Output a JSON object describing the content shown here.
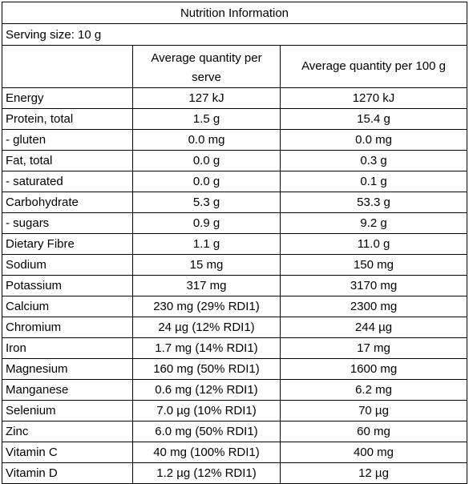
{
  "table": {
    "title": "Nutrition Information",
    "serving_size": "Serving size: 10 g",
    "header": {
      "nutrient": "",
      "per_serve": "Average quantity per serve",
      "per_100g": "Average quantity per 100 g"
    },
    "rows": [
      {
        "nutrient": "Energy",
        "per_serve": "127 kJ",
        "per_100g": "1270 kJ"
      },
      {
        "nutrient": "Protein, total",
        "per_serve": "1.5 g",
        "per_100g": "15.4 g"
      },
      {
        "nutrient": "- gluten",
        "per_serve": "0.0 mg",
        "per_100g": "0.0 mg"
      },
      {
        "nutrient": "Fat, total",
        "per_serve": "0.0 g",
        "per_100g": "0.3 g"
      },
      {
        "nutrient": "- saturated",
        "per_serve": "0.0 g",
        "per_100g": "0.1 g"
      },
      {
        "nutrient": "Carbohydrate",
        "per_serve": "5.3 g",
        "per_100g": "53.3 g"
      },
      {
        "nutrient": "- sugars",
        "per_serve": "0.9 g",
        "per_100g": "9.2 g"
      },
      {
        "nutrient": "Dietary Fibre",
        "per_serve": "1.1 g",
        "per_100g": "11.0 g"
      },
      {
        "nutrient": "Sodium",
        "per_serve": "15 mg",
        "per_100g": "150 mg"
      },
      {
        "nutrient": "Potassium",
        "per_serve": "317 mg",
        "per_100g": "3170 mg"
      },
      {
        "nutrient": "Calcium",
        "per_serve": "230 mg (29% RDI1)",
        "per_100g": "2300 mg"
      },
      {
        "nutrient": "Chromium",
        "per_serve": "24 µg (12% RDI1)",
        "per_100g": "244 µg"
      },
      {
        "nutrient": "Iron",
        "per_serve": "1.7 mg (14% RDI1)",
        "per_100g": "17 mg"
      },
      {
        "nutrient": "Magnesium",
        "per_serve": "160 mg (50% RDI1)",
        "per_100g": "1600 mg"
      },
      {
        "nutrient": "Manganese",
        "per_serve": "0.6 mg (12% RDI1)",
        "per_100g": "6.2 mg"
      },
      {
        "nutrient": "Selenium",
        "per_serve": "7.0 µg (10% RDI1)",
        "per_100g": "70 µg"
      },
      {
        "nutrient": "Zinc",
        "per_serve": "6.0 mg (50% RDI1)",
        "per_100g": "60 mg"
      },
      {
        "nutrient": "Vitamin C",
        "per_serve": "40 mg (100% RDI1)",
        "per_100g": "400 mg"
      },
      {
        "nutrient": "Vitamin D",
        "per_serve": "1.2 µg (12% RDI1)",
        "per_100g": "12 µg"
      }
    ]
  }
}
